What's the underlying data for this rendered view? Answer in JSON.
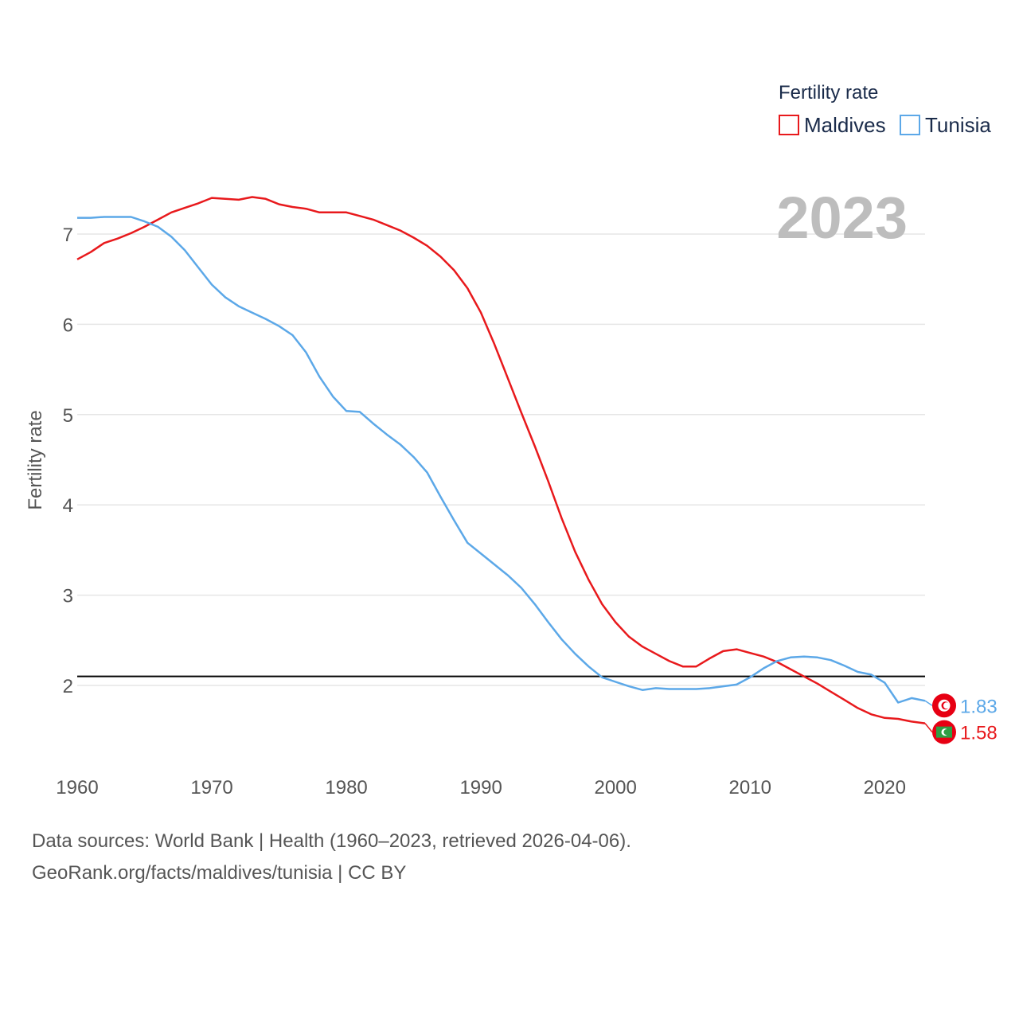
{
  "chart_data": {
    "type": "line",
    "title": "",
    "current_year_label": "2023",
    "legend_title": "Fertility rate",
    "ylabel": "Fertility rate",
    "xlabel": "",
    "xlim": [
      1960,
      2023
    ],
    "ylim": [
      1.0,
      7.6
    ],
    "x_ticks": [
      1960,
      1970,
      1980,
      1990,
      2000,
      2010,
      2020
    ],
    "y_ticks": [
      2,
      3,
      4,
      5,
      6,
      7
    ],
    "reference_line": 2.1,
    "x": [
      1960,
      1961,
      1962,
      1963,
      1964,
      1965,
      1966,
      1967,
      1968,
      1969,
      1970,
      1971,
      1972,
      1973,
      1974,
      1975,
      1976,
      1977,
      1978,
      1979,
      1980,
      1981,
      1982,
      1983,
      1984,
      1985,
      1986,
      1987,
      1988,
      1989,
      1990,
      1991,
      1992,
      1993,
      1994,
      1995,
      1996,
      1997,
      1998,
      1999,
      2000,
      2001,
      2002,
      2003,
      2004,
      2005,
      2006,
      2007,
      2008,
      2009,
      2010,
      2011,
      2012,
      2013,
      2014,
      2015,
      2016,
      2017,
      2018,
      2019,
      2020,
      2021,
      2022,
      2023
    ],
    "series": [
      {
        "name": "Maldives",
        "color": "#e8191c",
        "end_label": "1.58",
        "flag_icon": "maldives-flag-icon",
        "values": [
          6.72,
          6.8,
          6.9,
          6.95,
          7.01,
          7.08,
          7.16,
          7.24,
          7.29,
          7.34,
          7.4,
          7.39,
          7.38,
          7.41,
          7.39,
          7.33,
          7.3,
          7.28,
          7.24,
          7.24,
          7.24,
          7.2,
          7.16,
          7.1,
          7.04,
          6.96,
          6.87,
          6.75,
          6.6,
          6.4,
          6.13,
          5.78,
          5.4,
          5.02,
          4.65,
          4.26,
          3.85,
          3.48,
          3.17,
          2.9,
          2.7,
          2.54,
          2.43,
          2.35,
          2.27,
          2.21,
          2.21,
          2.3,
          2.38,
          2.4,
          2.36,
          2.32,
          2.26,
          2.18,
          2.1,
          2.02,
          1.93,
          1.84,
          1.75,
          1.68,
          1.64,
          1.63,
          1.6,
          1.58
        ]
      },
      {
        "name": "Tunisia",
        "color": "#5ca8e8",
        "end_label": "1.83",
        "flag_icon": "tunisia-flag-icon",
        "values": [
          7.18,
          7.18,
          7.19,
          7.19,
          7.19,
          7.14,
          7.08,
          6.97,
          6.82,
          6.63,
          6.44,
          6.3,
          6.2,
          6.13,
          6.06,
          5.98,
          5.88,
          5.69,
          5.42,
          5.2,
          5.04,
          5.03,
          4.9,
          4.78,
          4.67,
          4.53,
          4.36,
          4.09,
          3.83,
          3.58,
          3.46,
          3.34,
          3.22,
          3.08,
          2.9,
          2.7,
          2.51,
          2.35,
          2.21,
          2.09,
          2.04,
          1.99,
          1.95,
          1.97,
          1.96,
          1.96,
          1.96,
          1.97,
          1.99,
          2.01,
          2.09,
          2.19,
          2.27,
          2.31,
          2.32,
          2.31,
          2.28,
          2.22,
          2.15,
          2.12,
          2.03,
          1.81,
          1.86,
          1.83
        ]
      }
    ]
  },
  "footer": {
    "sources": "Data sources: World Bank | Health (1960–2023, retrieved 2026-04-06).",
    "attribution": "GeoRank.org/facts/maldives/tunisia | CC BY"
  }
}
